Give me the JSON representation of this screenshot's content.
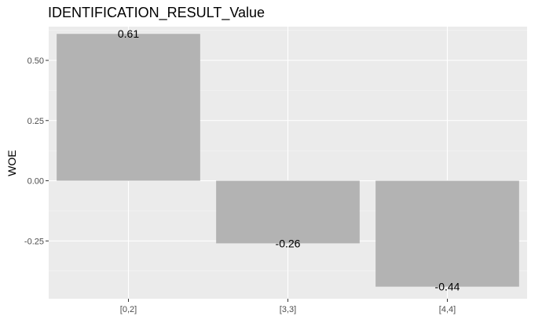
{
  "chart_data": {
    "type": "bar",
    "title": "IDENTIFICATION_RESULT_Value",
    "xlabel": "",
    "ylabel": "WOE",
    "categories": [
      "[0,2]",
      "[3,3]",
      "[4,4]"
    ],
    "values": [
      0.61,
      -0.26,
      -0.44
    ],
    "data_labels": [
      "0.61",
      "-0.26",
      "-0.44"
    ],
    "yticks": [
      -0.25,
      0.0,
      0.25,
      0.5
    ],
    "ytick_labels": [
      "-0.25",
      "0.00",
      "0.25",
      "0.50"
    ],
    "ylim": [
      -0.49,
      0.64
    ],
    "grid": true,
    "legend": "none",
    "colors": {
      "panel_background": "#ebebeb",
      "grid_major": "#ffffff",
      "grid_minor": "#f5f5f5",
      "bar_fill": "#b3b3b3",
      "tick_text": "#4d4d4d",
      "text": "#000000"
    }
  }
}
